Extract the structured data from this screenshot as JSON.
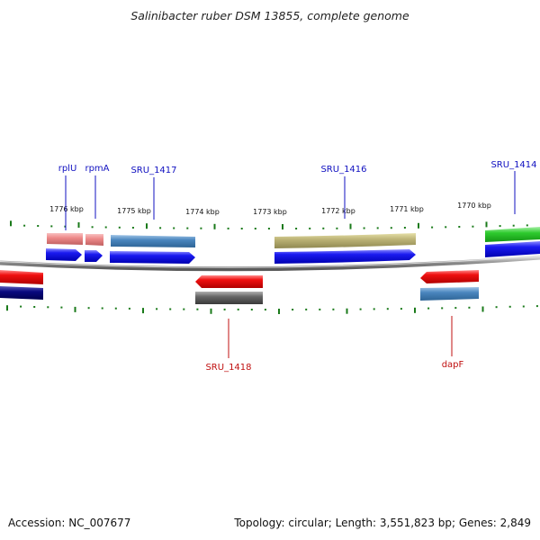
{
  "title": "Salinibacter ruber DSM 13855, complete genome",
  "footer": {
    "accession": "Accession: NC_007677",
    "summary": "Topology: circular; Length: 3,551,823 bp; Genes: 2,849"
  },
  "ruler": [
    "1776 kbp",
    "1775 kbp",
    "1774 kbp",
    "1773 kbp",
    "1772 kbp",
    "1771 kbp",
    "1770 kbp"
  ],
  "gene_labels": {
    "rplU": "rplU",
    "rpmA": "rpmA",
    "sru1417": "SRU_1417",
    "sru1416": "SRU_1416",
    "sru1414": "SRU_1414",
    "sru1418": "SRU_1418",
    "dapF": "dapF"
  },
  "colors": {
    "forward_label": "#1010c0",
    "reverse_label": "#c01010",
    "tick": "#1a7a1a",
    "cds_forward": "#1a1af0",
    "cds_reverse": "#e01010",
    "backbone": "#7a7a7a"
  }
}
